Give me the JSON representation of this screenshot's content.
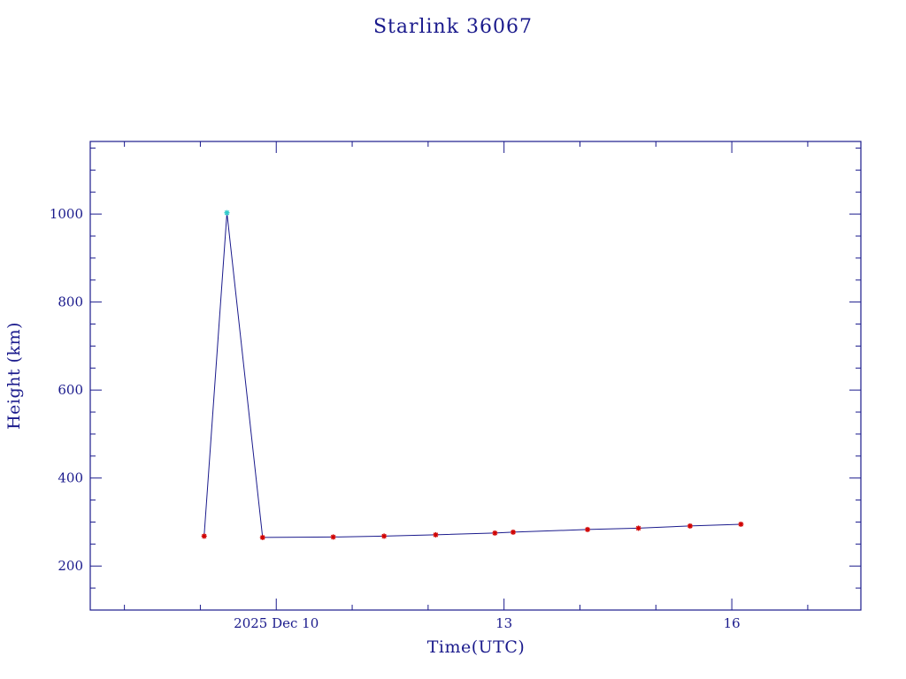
{
  "colors": {
    "axis": "#1a1a8c",
    "line": "#1a1a8c",
    "marker": "#d00000",
    "highlight_marker": "#33cccc",
    "background": "#ffffff"
  },
  "chart_data": {
    "type": "line",
    "title": "Starlink 36067",
    "xlabel": "Time(UTC)",
    "ylabel": "Height (km)",
    "x_unit": "days",
    "x_ticks": [
      {
        "value": 10,
        "label": "2025 Dec 10"
      },
      {
        "value": 13,
        "label": "13"
      },
      {
        "value": 16,
        "label": "16"
      }
    ],
    "y_ticks": [
      200,
      400,
      600,
      800,
      1000
    ],
    "xlim": [
      7.55,
      17.7
    ],
    "ylim": [
      100,
      1165
    ],
    "grid": false,
    "series": [
      {
        "marker": "asterisk",
        "x": [
          9.05,
          9.35,
          9.82,
          10.75,
          11.42,
          12.1,
          12.88,
          13.12,
          14.1,
          14.77,
          15.45,
          16.12
        ],
        "y": [
          268,
          1003,
          265,
          266,
          268,
          271,
          275,
          277,
          283,
          286,
          291,
          295
        ],
        "highlight_index": 1
      }
    ]
  }
}
